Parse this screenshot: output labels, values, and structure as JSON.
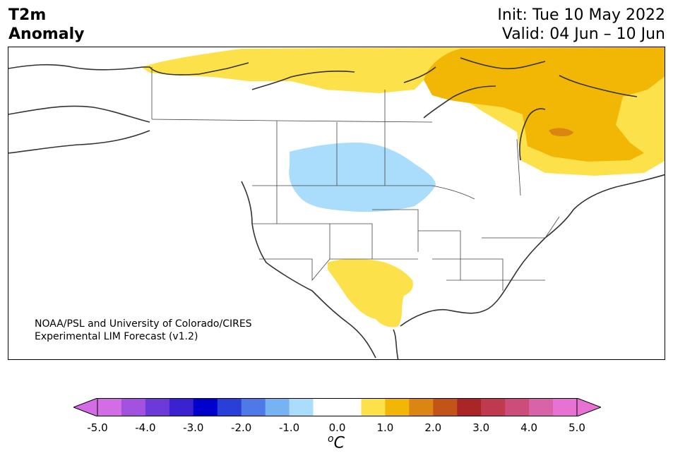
{
  "header": {
    "variable": "T2m",
    "subtitle": "Anomaly",
    "init": "Init: Tue 10 May 2022",
    "valid": "Valid: 04 Jun – 10 Jun"
  },
  "map": {
    "credit_line1": "NOAA/PSL and University of Colorado/CIRES",
    "credit_line2": "Experimental LIM Forecast (v1.2)",
    "land_outline_color": "#333333",
    "anomaly_regions": [
      {
        "name": "canada-north-warm",
        "level": "+0.5 to +1.0",
        "color": "#fde14b"
      },
      {
        "name": "labrador-quebec-warm",
        "level": "+1.0 to +1.5",
        "color": "#f2b705"
      },
      {
        "name": "quebec-core-warm",
        "level": "+1.5 to +2.0",
        "color": "#db8512"
      },
      {
        "name": "northern-plains-cool",
        "level": "-1.0 to -0.5",
        "color": "#aadcfb"
      },
      {
        "name": "southwest-warm",
        "level": "+0.5 to +1.0",
        "color": "#fde14b"
      }
    ]
  },
  "colorbar": {
    "units_base": "C",
    "units_sup": "o",
    "extend": "both",
    "colors": [
      "#d36de6",
      "#a352e0",
      "#6b3ad9",
      "#3a22d1",
      "#0000cc",
      "#2a3fd8",
      "#4f79e6",
      "#77b3f2",
      "#aadcfb",
      "#ffffff",
      "#ffffff",
      "#fde14b",
      "#f2b705",
      "#db8512",
      "#c25418",
      "#aa2626",
      "#c03a4e",
      "#cc4c7a",
      "#d963a8",
      "#e872d4"
    ],
    "extend_low_color": "#d36de6",
    "extend_high_color": "#e872d4",
    "ticks": [
      "-5.0",
      "-4.0",
      "-3.0",
      "-2.0",
      "-1.0",
      "0.0",
      "1.0",
      "2.0",
      "3.0",
      "4.0",
      "5.0"
    ]
  }
}
